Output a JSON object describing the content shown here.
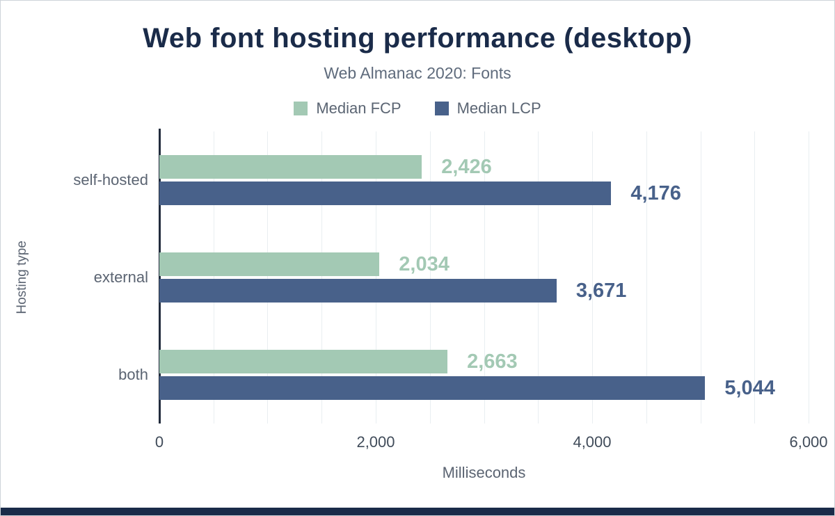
{
  "chart_data": {
    "type": "bar",
    "orientation": "horizontal",
    "title": "Web font hosting performance (desktop)",
    "subtitle": "Web Almanac 2020: Fonts",
    "xlabel": "Milliseconds",
    "ylabel": "Hosting type",
    "categories": [
      "self-hosted",
      "external",
      "both"
    ],
    "series": [
      {
        "name": "Median FCP",
        "color": "#a3c9b4",
        "values": [
          2426,
          2034,
          2663
        ],
        "labels": [
          "2,426",
          "2,034",
          "2,663"
        ]
      },
      {
        "name": "Median LCP",
        "color": "#48618a",
        "values": [
          4176,
          3671,
          5044
        ],
        "labels": [
          "4,176",
          "3,671",
          "5,044"
        ]
      }
    ],
    "xlim": [
      0,
      6000
    ],
    "x_ticks": [
      0,
      2000,
      4000,
      6000
    ],
    "x_tick_labels": [
      "0",
      "2,000",
      "4,000",
      "6,000"
    ],
    "gridline_step": 500,
    "grid": true,
    "legend_position": "top"
  },
  "colors": {
    "title": "#1a2b49",
    "subtitle": "#5f6b7c",
    "fcp_bar": "#a3c9b4",
    "lcp_bar": "#48618a",
    "axis_line": "#222c3d",
    "gridline": "#e9eef1",
    "footer_accent": "#1a2b49"
  }
}
